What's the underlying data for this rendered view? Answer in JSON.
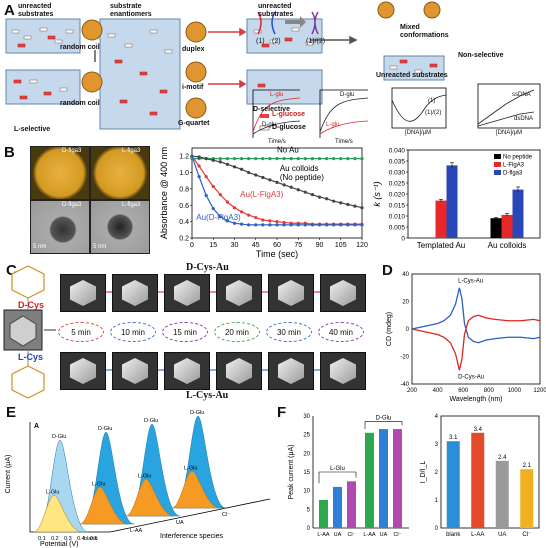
{
  "panel_labels": {
    "a": "A",
    "b": "B",
    "c": "C",
    "d": "D",
    "e": "E",
    "f": "F"
  },
  "panelA": {
    "box_unreacted_left": "unreacted substrates",
    "box_enantiomers": "substrate enantiomers",
    "box_unreacted_right": "unreacted substrates",
    "random_coil_1": "random coil",
    "random_coil_2": "random coil",
    "duplex": "duplex",
    "imotif": "i-motif",
    "gquartet": "G-quartet",
    "l_selective": "L-selective",
    "d_selective": "D-selective",
    "legend_l": "L-glucose",
    "legend_d": "D-glucose",
    "strand_1": "(1)",
    "strand_2": "(2)",
    "strand_12": "(1)/(2)",
    "mixed_conf": "Mixed conformations",
    "non_selective": "Non-selective",
    "unreacted_sub": "Unreacted substrates",
    "mini1": {
      "ylabel": "A",
      "xlabel": "Time/s",
      "series_top": "L-glu",
      "series_bot": "D-glu",
      "tag": "(1)",
      "ticks": [
        "0",
        "70",
        "140"
      ]
    },
    "mini2": {
      "ylabel": "A",
      "xlabel": "Time/s",
      "series_top": "D-glu",
      "series_bot": "L-glu",
      "tag": "(1)/(2)",
      "ticks": [
        "0",
        "70",
        "140"
      ]
    },
    "mini3": {
      "ylabel": "D/L-1 (Δθ)",
      "xlabel": "[DNA]/μM",
      "tag1": "(1)",
      "tag2": "(1)/(2)",
      "ticks": [
        "0",
        "1",
        "2",
        "3"
      ]
    },
    "mini4": {
      "ylabel": "#DNA/NP",
      "xlabel": "[DNA]/μM",
      "series_top": "ssDNA",
      "series_bot": "dsDNA",
      "ticks": [
        "0",
        "1",
        "2",
        "3"
      ],
      "yticks": [
        "4",
        "8",
        "12",
        "16",
        "20"
      ]
    }
  },
  "panelB": {
    "img_labels": [
      "D-flga3",
      "L-flga3",
      "D-flga3",
      "L-flga3"
    ],
    "scale": "5 nm",
    "chart_data": [
      {
        "type": "line",
        "ylabel": "Absorbance @ 400 nm",
        "xlabel": "Time (sec)",
        "xlim": [
          0,
          120
        ],
        "ylim": [
          0.2,
          1.3
        ],
        "xticks": [
          0,
          15,
          30,
          45,
          60,
          75,
          90,
          105,
          120
        ],
        "yticks": [
          0.2,
          0.4,
          0.6,
          0.8,
          1.0,
          1.2
        ],
        "series": [
          {
            "name": "No Au",
            "color": "#2a9d5c",
            "x": [
              0,
              5,
              10,
              15,
              20,
              25,
              30,
              35,
              40,
              45,
              50,
              55,
              60,
              65,
              70,
              75,
              80,
              85,
              90,
              95,
              100,
              105,
              110,
              115,
              120
            ],
            "y": [
              1.17,
              1.17,
              1.17,
              1.17,
              1.17,
              1.17,
              1.17,
              1.17,
              1.17,
              1.17,
              1.17,
              1.17,
              1.17,
              1.17,
              1.17,
              1.17,
              1.17,
              1.17,
              1.17,
              1.17,
              1.17,
              1.17,
              1.17,
              1.17,
              1.17
            ]
          },
          {
            "name": "Au colloids (No peptide)",
            "color": "#444444",
            "x": [
              0,
              5,
              10,
              15,
              20,
              25,
              30,
              35,
              40,
              45,
              50,
              55,
              60,
              65,
              70,
              75,
              80,
              85,
              90,
              95,
              100,
              105,
              110,
              115,
              120
            ],
            "y": [
              1.2,
              1.19,
              1.17,
              1.15,
              1.13,
              1.1,
              1.07,
              1.04,
              1.0,
              0.97,
              0.94,
              0.91,
              0.88,
              0.85,
              0.82,
              0.79,
              0.76,
              0.73,
              0.7,
              0.68,
              0.65,
              0.63,
              0.61,
              0.59,
              0.57
            ]
          },
          {
            "name": "Au(L-FlgA3)",
            "color": "#e23b3b",
            "x": [
              0,
              5,
              10,
              15,
              20,
              25,
              30,
              35,
              40,
              45,
              50,
              55,
              60,
              65,
              70,
              75,
              80,
              85,
              90,
              95,
              100,
              105,
              110,
              115,
              120
            ],
            "y": [
              1.2,
              1.08,
              0.95,
              0.83,
              0.73,
              0.64,
              0.57,
              0.52,
              0.48,
              0.45,
              0.42,
              0.41,
              0.4,
              0.39,
              0.38,
              0.38,
              0.38,
              0.37,
              0.37,
              0.37,
              0.37,
              0.37,
              0.37,
              0.37,
              0.37
            ]
          },
          {
            "name": "Au(D-FlgA3)",
            "color": "#2f5fc4",
            "x": [
              0,
              5,
              10,
              15,
              20,
              25,
              30,
              35,
              40,
              45,
              50,
              55,
              60,
              65,
              70,
              75,
              80,
              85,
              90,
              95,
              100,
              105,
              110,
              115,
              120
            ],
            "y": [
              1.2,
              0.95,
              0.72,
              0.56,
              0.46,
              0.41,
              0.38,
              0.37,
              0.36,
              0.36,
              0.36,
              0.36,
              0.36,
              0.36,
              0.36,
              0.36,
              0.36,
              0.36,
              0.36,
              0.36,
              0.36,
              0.36,
              0.36,
              0.36,
              0.36
            ]
          }
        ]
      },
      {
        "type": "bar",
        "ylabel": "k (s⁻¹)",
        "categories": [
          "Templated Au",
          "Au colloids"
        ],
        "ylim": [
          0,
          0.04
        ],
        "yticks": [
          0,
          0.005,
          0.01,
          0.015,
          0.02,
          0.025,
          0.03,
          0.035,
          0.04
        ],
        "ytick_labels": [
          "0",
          "0.005",
          "0.010",
          "0.015",
          "0.020",
          "0.025",
          "0.030",
          "0.035",
          "0.040"
        ],
        "series": [
          {
            "name": "No peptide",
            "color": "#000000",
            "values": [
              null,
              0.009
            ]
          },
          {
            "name": "L-FlgA3",
            "color": "#e82828",
            "values": [
              0.017,
              0.0105
            ]
          },
          {
            "name": "D-flga3",
            "color": "#2a47b8",
            "values": [
              0.033,
              0.022
            ]
          }
        ],
        "errors": [
          [
            null,
            0.0004
          ],
          [
            0.0006,
            0.0006
          ],
          [
            0.0012,
            0.0012
          ]
        ]
      }
    ],
    "label_noau": "No Au",
    "label_colloid1": "Au colloids",
    "label_colloid2": "(No peptide)",
    "label_l": "Au(L-FlgA3)",
    "label_d": "Au(D-FlgA3)"
  },
  "panelC": {
    "title_top": "D-Cys-Au",
    "title_bot": "L-Cys-Au",
    "d_cys": "D-Cys",
    "l_cys": "L-Cys",
    "times": [
      "5 min",
      "10 min",
      "15 min",
      "20 min",
      "30 min",
      "40 min"
    ],
    "time_colors": [
      "#e04040",
      "#3b6fd6",
      "#8b3bb0",
      "#3bb04a",
      "#3b6fd6",
      "#8b3bb0"
    ]
  },
  "panelD": {
    "chart_data": {
      "type": "line",
      "ylabel": "CD (mdeg)",
      "xlabel": "Wavelength (nm)",
      "xlim": [
        200,
        1200
      ],
      "ylim": [
        -40,
        40
      ],
      "xticks": [
        200,
        400,
        600,
        800,
        1000,
        1200
      ],
      "yticks": [
        -40,
        -20,
        0,
        20,
        40
      ],
      "annot_top": "L-Cys-Au",
      "annot_bot": "D-Cys-Au",
      "series": [
        {
          "name": "L-Cys-Au",
          "color": "#2a5fc4",
          "x": [
            200,
            300,
            400,
            450,
            500,
            540,
            570,
            590,
            610,
            640,
            680,
            720,
            780,
            850,
            950,
            1050,
            1150,
            1200
          ],
          "y": [
            0,
            2,
            4,
            6,
            10,
            18,
            30,
            22,
            4,
            -6,
            -9,
            -10,
            -8,
            -7,
            -6,
            -6,
            -7,
            -6
          ]
        },
        {
          "name": "D-Cys-Au",
          "color": "#e02424",
          "x": [
            200,
            300,
            400,
            450,
            500,
            540,
            570,
            590,
            610,
            640,
            680,
            720,
            780,
            850,
            950,
            1050,
            1150,
            1200
          ],
          "y": [
            0,
            -2,
            -4,
            -6,
            -10,
            -18,
            -30,
            -22,
            -4,
            6,
            9,
            10,
            8,
            7,
            6,
            6,
            7,
            6
          ]
        }
      ]
    }
  },
  "panelE": {
    "chart_data": {
      "type": "area",
      "ylabel": "Current (μA)",
      "xlabel": "Potential (V)",
      "zlabel": "Interference species",
      "inner_tag": "A",
      "categories": [
        "blank",
        "L-AA",
        "UA",
        "Cl⁻"
      ],
      "xticks": [
        "0.1",
        "0.2",
        "0.3",
        "0.4",
        "0.5"
      ],
      "peaks": [
        {
          "name": "blank",
          "d_label": "D-Glu",
          "l_label": "L-Glu",
          "d_peak": 30,
          "l_peak": 12
        },
        {
          "name": "L-AA",
          "d_label": "D-Glu",
          "l_label": "L-Glu",
          "d_peak": 30,
          "l_peak": 12
        },
        {
          "name": "UA",
          "d_label": "D-Glu",
          "l_label": "L-Glu",
          "d_peak": 30,
          "l_peak": 12
        },
        {
          "name": "Cl⁻",
          "d_label": "D-Glu",
          "l_label": "L-Glu",
          "d_peak": 30,
          "l_peak": 12
        }
      ]
    }
  },
  "panelF": {
    "chart_data": [
      {
        "type": "bar",
        "ylabel": "Peak current (μA)",
        "ylim": [
          0,
          30
        ],
        "yticks": [
          0,
          5,
          10,
          15,
          20,
          25,
          30
        ],
        "group_labels": [
          "L-Glu",
          "D-Glu"
        ],
        "categories": [
          "L-AA",
          "UA",
          "Cl⁻",
          "L-AA",
          "UA",
          "Cl⁻"
        ],
        "values": [
          7.5,
          11.0,
          12.5,
          25.5,
          26.5,
          26.5
        ],
        "colors": [
          "#2ea84e",
          "#2f7fd6",
          "#b04ab0",
          "#2ea84e",
          "#2f7fd6",
          "#b04ab0"
        ]
      },
      {
        "type": "bar",
        "ylabel": "I_D/I_L",
        "ylim": [
          0,
          4
        ],
        "yticks": [
          0,
          1,
          2,
          3,
          4
        ],
        "categories": [
          "blank",
          "L-AA",
          "UA",
          "Cl⁻"
        ],
        "values": [
          3.1,
          3.4,
          2.4,
          2.1
        ],
        "value_labels": [
          "3.1",
          "3.4",
          "2.4",
          "2.1"
        ],
        "colors": [
          "#2a8fd6",
          "#e24a2a",
          "#9a9a9a",
          "#f0b020"
        ]
      }
    ]
  }
}
